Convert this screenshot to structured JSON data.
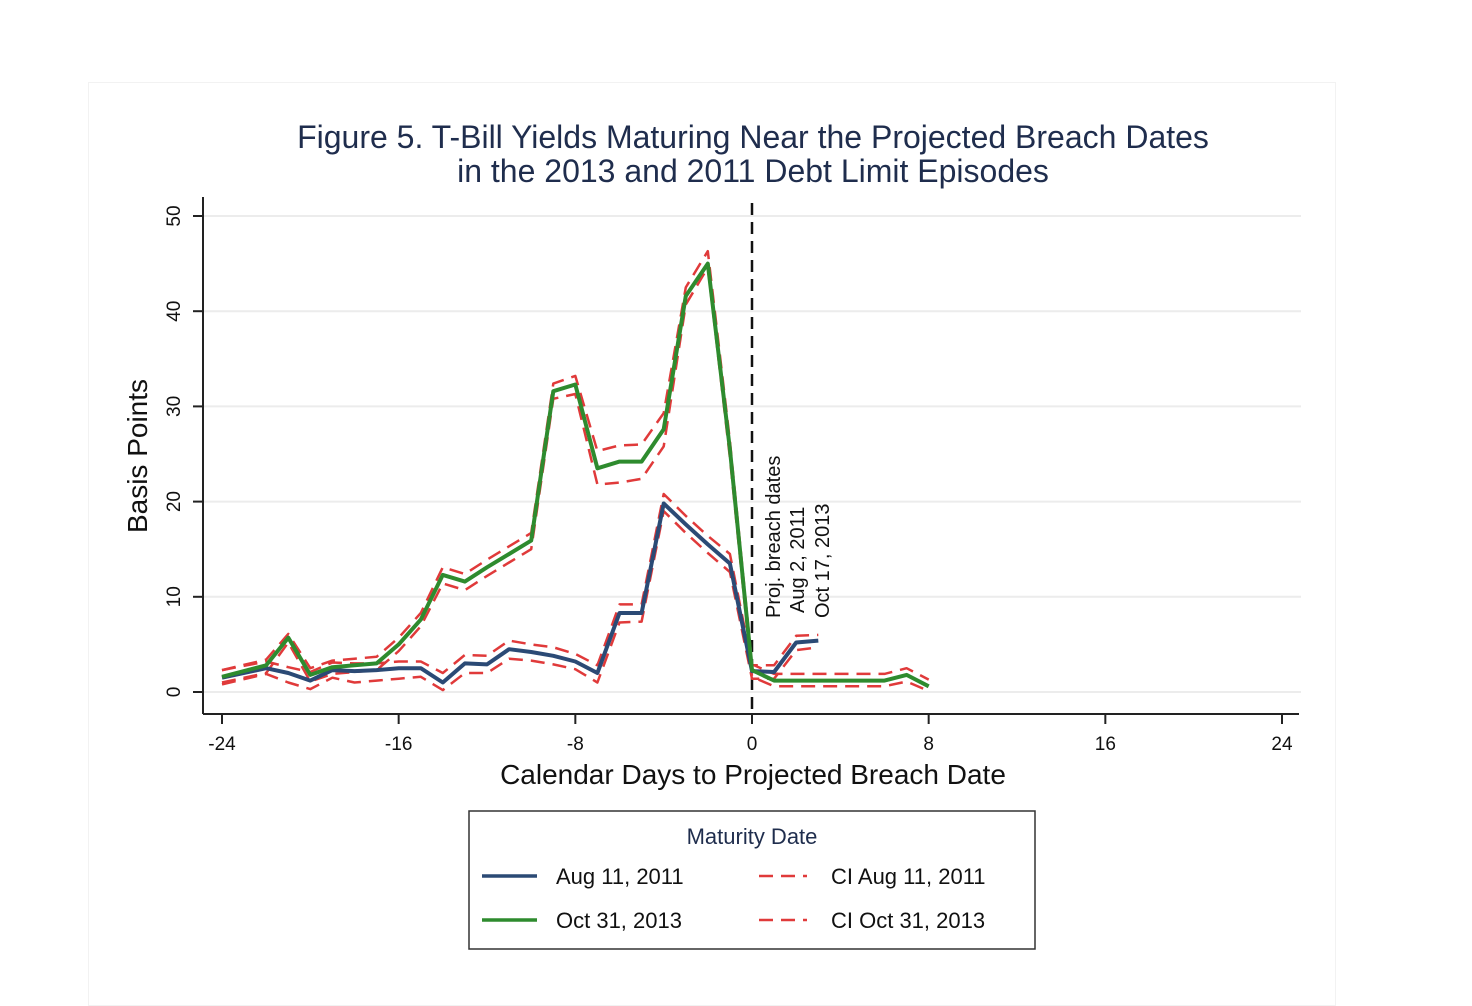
{
  "chart_data": {
    "type": "line",
    "title_lines": [
      "Figure 5. T-Bill Yields Maturing Near the Projected Breach Dates",
      "in the 2013 and 2011 Debt Limit Episodes"
    ],
    "xlabel": "Calendar Days to Projected Breach Date",
    "ylabel": "Basis Points",
    "xlim": [
      -24,
      24
    ],
    "ylim": [
      0,
      50
    ],
    "xticks": [
      "-24",
      "-16",
      "-8",
      "0",
      "8",
      "16",
      "24"
    ],
    "yticks": [
      "0",
      "10",
      "20",
      "30",
      "40",
      "50"
    ],
    "grid": true,
    "annotation_lines": [
      "Proj. breach dates",
      "Aug 2, 2011",
      "Oct 17, 2013"
    ],
    "legend": {
      "title": "Maturity Date",
      "position": "bottom",
      "entries": [
        "Aug 11, 2011",
        "CI Aug 11, 2011",
        "Oct 31, 2013",
        "CI Oct 31, 2013"
      ]
    },
    "series": [
      {
        "name": "Aug 11, 2011",
        "color": "#2b4a75",
        "style": "solid",
        "x": [
          -24,
          -22,
          -21,
          -20,
          -19,
          -18,
          -17,
          -16,
          -15,
          -14,
          -13,
          -12,
          -11,
          -10,
          -9,
          -8,
          -7,
          -6,
          -5,
          -4,
          -3,
          -2,
          -1,
          0,
          1,
          2,
          3
        ],
        "y": [
          1.5,
          2.5,
          2.0,
          1.2,
          2.3,
          2.2,
          2.3,
          2.5,
          2.5,
          1.0,
          3.0,
          2.9,
          4.5,
          4.2,
          3.8,
          3.2,
          2.0,
          8.3,
          8.3,
          19.8,
          17.6,
          15.5,
          13.5,
          2.2,
          2.1,
          5.2,
          5.4
        ]
      },
      {
        "name": "CI Aug 11, 2011 (upper)",
        "color": "#e03a3a",
        "style": "dashed",
        "x": [
          -24,
          -22,
          -21,
          -20,
          -19,
          -18,
          -17,
          -16,
          -15,
          -14,
          -13,
          -12,
          -11,
          -10,
          -9,
          -8,
          -7,
          -6,
          -5,
          -4,
          -3,
          -2,
          -1,
          0,
          1,
          2,
          3
        ],
        "y": [
          2.3,
          3.2,
          2.6,
          2.1,
          3.1,
          3.0,
          3.0,
          3.2,
          3.2,
          2.0,
          3.9,
          3.8,
          5.4,
          5.0,
          4.7,
          4.0,
          2.8,
          9.2,
          9.2,
          20.8,
          18.5,
          16.4,
          14.5,
          2.8,
          2.8,
          5.9,
          6.0
        ]
      },
      {
        "name": "CI Aug 11, 2011 (lower)",
        "color": "#e03a3a",
        "style": "dashed",
        "x": [
          -24,
          -22,
          -21,
          -20,
          -19,
          -18,
          -17,
          -16,
          -15,
          -14,
          -13,
          -12,
          -11,
          -10,
          -9,
          -8,
          -7,
          -6,
          -5,
          -4,
          -3,
          -2,
          -1,
          0,
          1,
          2,
          3
        ],
        "y": [
          0.8,
          1.9,
          1.0,
          0.3,
          1.5,
          1.0,
          1.2,
          1.4,
          1.6,
          0.2,
          2.0,
          2.0,
          3.5,
          3.3,
          2.9,
          2.4,
          1.0,
          7.3,
          7.4,
          19.0,
          16.7,
          14.6,
          12.6,
          1.4,
          1.4,
          4.4,
          4.7
        ]
      },
      {
        "name": "Oct 31, 2013",
        "color": "#2e8b2e",
        "style": "solid",
        "x": [
          -24,
          -22,
          -21,
          -20,
          -19,
          -18,
          -17,
          -16,
          -15,
          -14,
          -13,
          -12,
          -11,
          -10,
          -9,
          -8,
          -7,
          -6,
          -5,
          -4,
          -3,
          -2,
          -1,
          0,
          1,
          2,
          3,
          4,
          5,
          6,
          7,
          8
        ],
        "y": [
          1.6,
          2.8,
          5.7,
          1.8,
          2.6,
          2.8,
          3.0,
          5.0,
          7.6,
          12.3,
          11.6,
          13.1,
          14.5,
          15.9,
          31.6,
          32.3,
          23.5,
          24.2,
          24.2,
          27.6,
          41.6,
          45.0,
          25.5,
          2.3,
          1.2,
          1.2,
          1.2,
          1.2,
          1.2,
          1.2,
          1.8,
          0.6
        ]
      },
      {
        "name": "CI Oct 31, 2013 (upper)",
        "color": "#e03a3a",
        "style": "dashed",
        "x": [
          -24,
          -22,
          -21,
          -20,
          -19,
          -18,
          -17,
          -16,
          -15,
          -14,
          -13,
          -12,
          -11,
          -10,
          -9,
          -8,
          -7,
          -6,
          -5,
          -4,
          -3,
          -2,
          -1,
          0,
          1,
          2,
          3,
          4,
          5,
          6,
          7,
          8
        ],
        "y": [
          2.3,
          3.4,
          6.1,
          2.5,
          3.3,
          3.5,
          3.7,
          5.7,
          8.3,
          13.1,
          12.4,
          13.9,
          15.3,
          16.7,
          32.4,
          33.2,
          25.3,
          25.9,
          26.0,
          29.3,
          42.5,
          46.3,
          26.4,
          2.9,
          1.9,
          1.9,
          1.9,
          1.9,
          1.9,
          1.9,
          2.5,
          1.3
        ]
      },
      {
        "name": "CI Oct 31, 2013 (lower)",
        "color": "#e03a3a",
        "style": "dashed",
        "x": [
          -24,
          -22,
          -21,
          -20,
          -19,
          -18,
          -17,
          -16,
          -15,
          -14,
          -13,
          -12,
          -11,
          -10,
          -9,
          -8,
          -7,
          -6,
          -5,
          -4,
          -3,
          -2,
          -1,
          0,
          1,
          2,
          3,
          4,
          5,
          6,
          7,
          8
        ],
        "y": [
          1.0,
          2.0,
          5.2,
          1.1,
          1.9,
          2.1,
          2.3,
          4.3,
          6.9,
          11.4,
          10.7,
          12.2,
          13.6,
          15.0,
          30.8,
          31.3,
          21.8,
          22.0,
          22.4,
          25.8,
          40.7,
          44.6,
          24.6,
          1.6,
          0.6,
          0.6,
          0.6,
          0.6,
          0.6,
          0.6,
          1.1,
          0.1
        ]
      }
    ]
  }
}
